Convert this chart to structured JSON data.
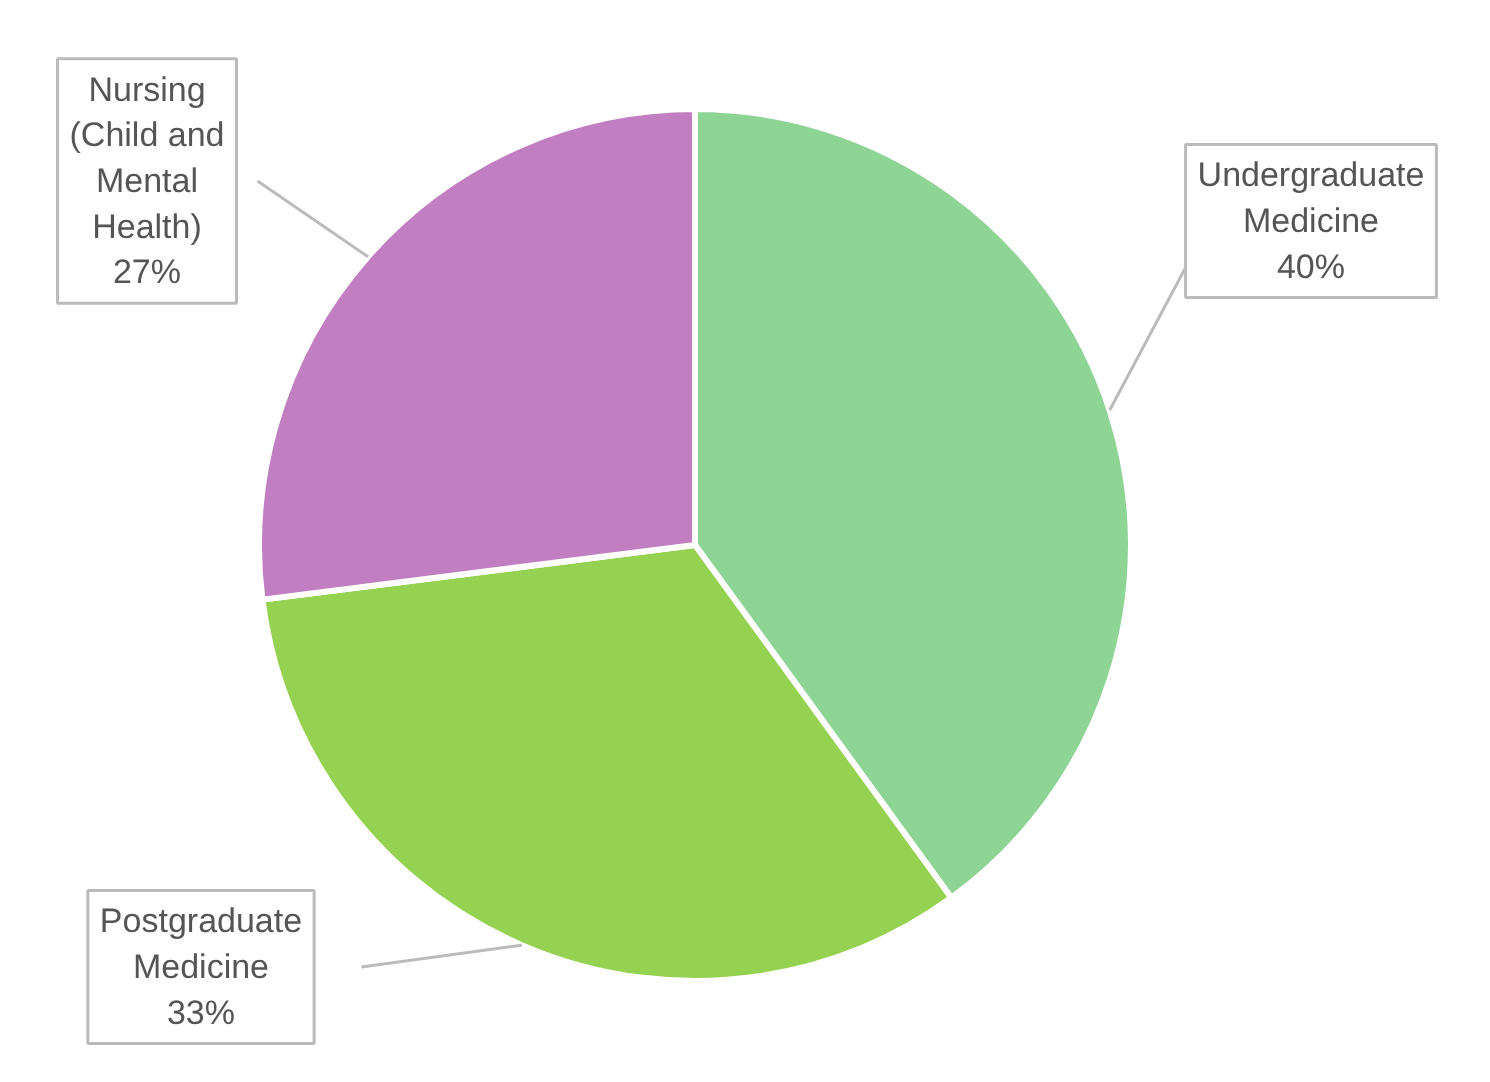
{
  "chart_data": {
    "type": "pie",
    "categories": [
      "Undergraduate Medicine",
      "Postgraduate Medicine",
      "Nursing (Child and Mental Health)"
    ],
    "values": [
      40,
      33,
      27
    ],
    "colors": [
      "#8dd495",
      "#95d251",
      "#c17fc1"
    ],
    "value_labels": [
      "40%",
      "33%",
      "27%"
    ]
  }
}
